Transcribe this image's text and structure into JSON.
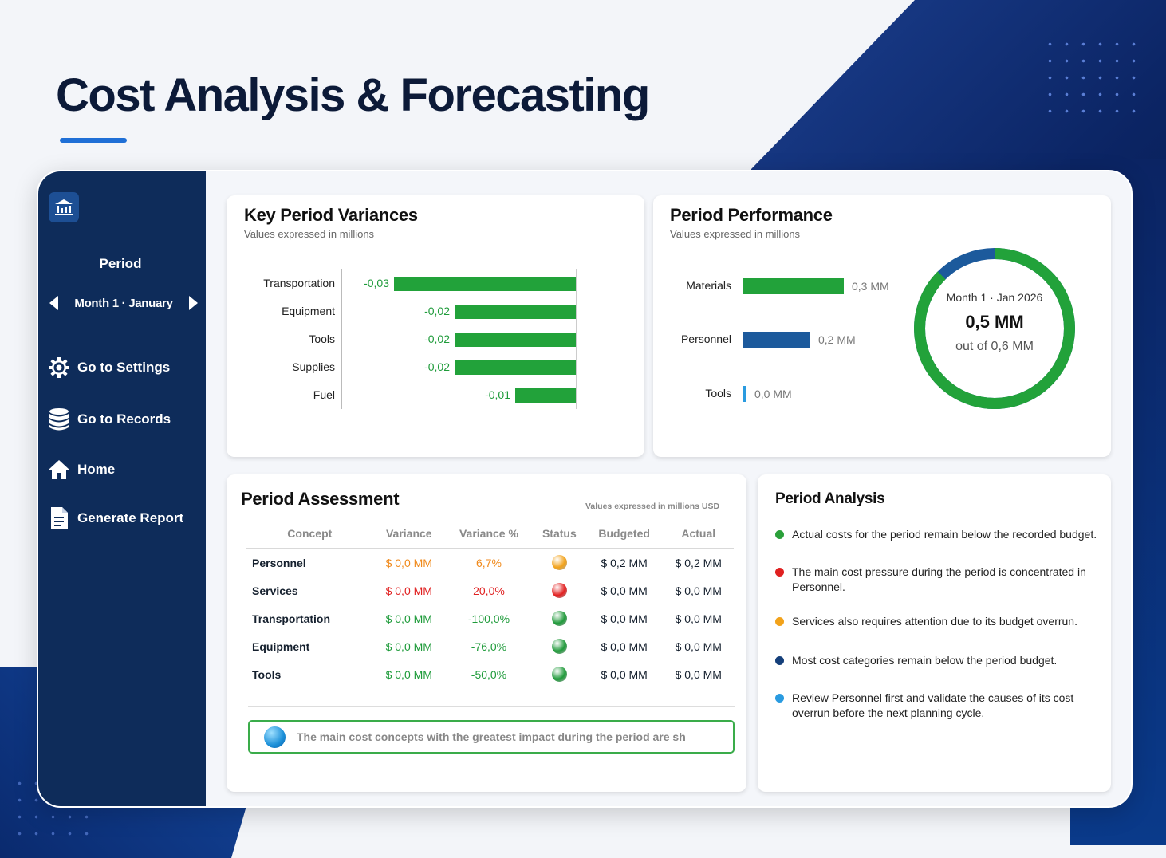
{
  "page": {
    "title": "Cost Analysis & Forecasting"
  },
  "sidebar": {
    "period_label": "Period",
    "period_value": "Month 1 · January",
    "nav": [
      {
        "label": "Go to Settings",
        "icon": "gear-icon"
      },
      {
        "label": "Go to Records",
        "icon": "database-icon"
      },
      {
        "label": "Home",
        "icon": "home-icon"
      },
      {
        "label": "Generate Report",
        "icon": "document-icon"
      }
    ]
  },
  "variances": {
    "title": "Key Period Variances",
    "subtitle": "Values expressed in millions",
    "chart_data": {
      "type": "bar",
      "orientation": "horizontal",
      "categories": [
        "Transportation",
        "Equipment",
        "Tools",
        "Supplies",
        "Fuel"
      ],
      "values": [
        -0.03,
        -0.02,
        -0.02,
        -0.02,
        -0.01
      ],
      "value_labels": [
        "-0,03",
        "-0,02",
        "-0,02",
        "-0,02",
        "-0,01"
      ],
      "color": "#22a23a"
    }
  },
  "performance": {
    "title": "Period Performance",
    "subtitle": "Values expressed in millions",
    "chart_data": {
      "type": "bar",
      "orientation": "horizontal",
      "categories": [
        "Materials",
        "Personnel",
        "Tools"
      ],
      "values": [
        0.3,
        0.2,
        0.0
      ],
      "value_labels": [
        "0,3 MM",
        "0,2 MM",
        "0,0 MM"
      ],
      "colors": [
        "#22a23a",
        "#1c5a9c",
        "#2a9be0"
      ]
    },
    "donut": {
      "period": "Month 1 · Jan 2026",
      "value": "0,5 MM",
      "total": "out of 0,6 MM",
      "fraction": 0.875,
      "color_main": "#22a23a",
      "color_rest": "#1c5a9c"
    }
  },
  "assessment": {
    "title": "Period Assessment",
    "note": "Values expressed in millions USD",
    "columns": [
      "Concept",
      "Variance",
      "Variance %",
      "Status",
      "Budgeted",
      "Actual"
    ],
    "rows": [
      {
        "concept": "Personnel",
        "variance": "$ 0,0 MM",
        "variance_pct": "6,7%",
        "status": "warning",
        "budgeted": "$ 0,2 MM",
        "actual": "$ 0,2 MM",
        "color": "#f08a1c"
      },
      {
        "concept": "Services",
        "variance": "$ 0,0 MM",
        "variance_pct": "20,0%",
        "status": "critical",
        "budgeted": "$ 0,0 MM",
        "actual": "$ 0,0 MM",
        "color": "#e02020"
      },
      {
        "concept": "Transportation",
        "variance": "$ 0,0 MM",
        "variance_pct": "-100,0%",
        "status": "ok",
        "budgeted": "$ 0,0 MM",
        "actual": "$ 0,0 MM",
        "color": "#1e9b3a"
      },
      {
        "concept": "Equipment",
        "variance": "$ 0,0 MM",
        "variance_pct": "-76,0%",
        "status": "ok",
        "budgeted": "$ 0,0 MM",
        "actual": "$ 0,0 MM",
        "color": "#1e9b3a"
      },
      {
        "concept": "Tools",
        "variance": "$ 0,0 MM",
        "variance_pct": "-50,0%",
        "status": "ok",
        "budgeted": "$ 0,0 MM",
        "actual": "$ 0,0 MM",
        "color": "#1e9b3a"
      }
    ],
    "status_colors": {
      "warning": "#f2a21a",
      "critical": "#e21f1f",
      "ok": "#1f9a3a"
    },
    "ticker": "The main cost concepts with the greatest impact during the period are sh"
  },
  "analysis": {
    "title": "Period Analysis",
    "items": [
      {
        "text": "Actual costs for the period remain below the recorded budget.",
        "color": "#2aa03a"
      },
      {
        "text": "The main cost pressure during the period is concentrated in Personnel.",
        "color": "#e02020"
      },
      {
        "text": "Services also requires attention due to its budget overrun.",
        "color": "#f2a21a"
      },
      {
        "text": "Most cost categories remain below the period budget.",
        "color": "#153f7a"
      },
      {
        "text": "Review Personnel first and validate the causes of its cost overrun before the next planning cycle.",
        "color": "#2a9be0"
      }
    ]
  }
}
